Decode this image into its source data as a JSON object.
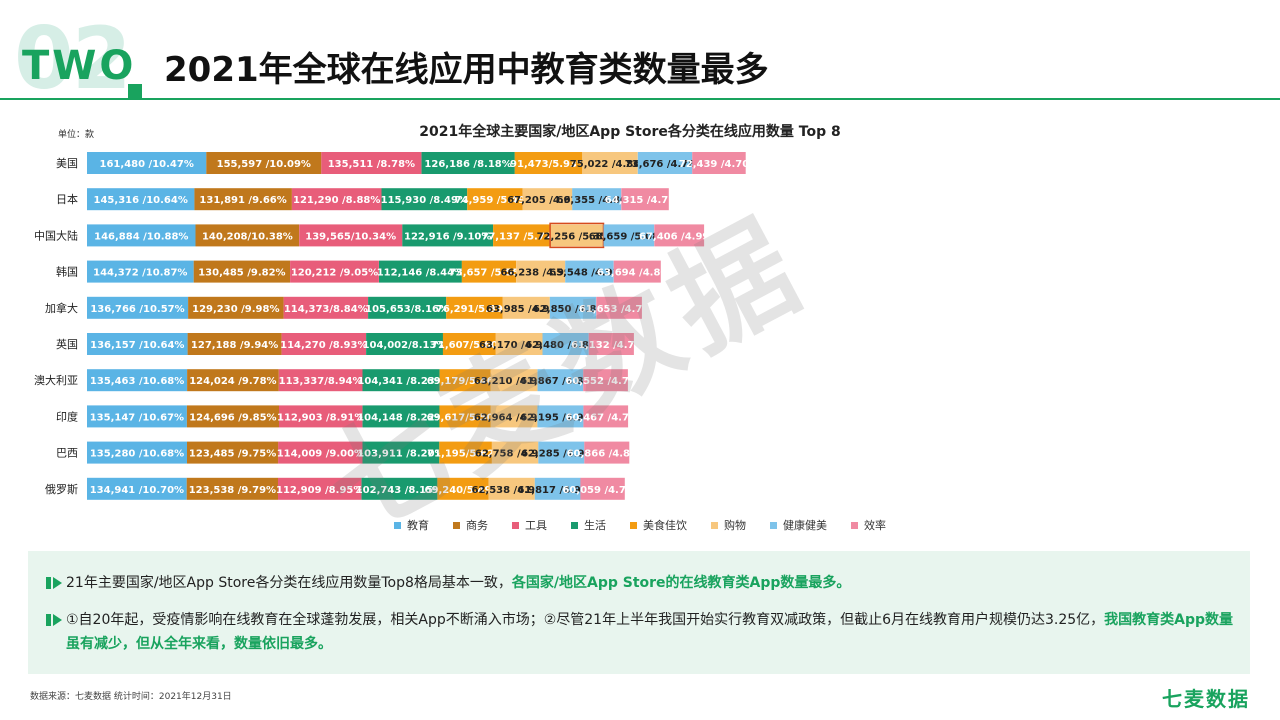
{
  "header": {
    "section_number": "02",
    "section_word": "TWO",
    "title": "2021年全球在线应用中教育类数量最多"
  },
  "unit_label": "单位：款",
  "colors": {
    "教育": "#5ab4e5",
    "商务": "#c0781c",
    "工具": "#e85d7a",
    "生活": "#199a6e",
    "美食佳饮": "#f39c12",
    "购物": "#f7c77e",
    "健康健美": "#7ec3ea",
    "效率": "#f08aa2",
    "accent": "#19a35e"
  },
  "chart_data": {
    "type": "bar",
    "orientation": "horizontal",
    "stacked": true,
    "title": "2021年全球主要国家/地区App Store各分类在线应用数量 Top 8",
    "categories": [
      "美国",
      "日本",
      "中国大陆",
      "韩国",
      "加拿大",
      "英国",
      "澳大利亚",
      "印度",
      "巴西",
      "俄罗斯"
    ],
    "series": [
      {
        "name": "教育",
        "values": [
          161480,
          145316,
          146884,
          144372,
          136766,
          136157,
          135463,
          135147,
          135280,
          134941
        ],
        "labels": [
          "161,480 /10.47%",
          "145,316 /10.64%",
          "146,884 /10.88%",
          "144,372 /10.87%",
          "136,766 /10.57%",
          "136,157 /10.64%",
          "135,463 /10.68%",
          "135,147 /10.67%",
          "135,280 /10.68%",
          "134,941 /10.70%"
        ]
      },
      {
        "name": "商务",
        "values": [
          155597,
          131891,
          140208,
          130485,
          129230,
          127188,
          124024,
          124696,
          123485,
          123538
        ],
        "labels": [
          "155,597 /10.09%",
          "131,891 /9.66%",
          "140,208/10.38%",
          "130,485 /9.82%",
          "129,230 /9.98%",
          "127,188 /9.94%",
          "124,024 /9.78%",
          "124,696 /9.85%",
          "123,485 /9.75%",
          "123,538 /9.79%"
        ]
      },
      {
        "name": "工具",
        "values": [
          135511,
          121290,
          139565,
          120212,
          114373,
          114270,
          113337,
          112903,
          114009,
          112909
        ],
        "labels": [
          "135,511 /8.78%",
          "121,290 /8.88%",
          "139,565/10.34%",
          "120,212 /9.05%",
          "114,373/8.84%",
          "114,270 /8.93%",
          "113,337/8.94%",
          "112,903 /8.91%",
          "114,009 /9.00%",
          "112,909 /8.95%"
        ]
      },
      {
        "name": "生活",
        "values": [
          126186,
          115930,
          122916,
          112146,
          105653,
          104002,
          104341,
          104148,
          103911,
          102743
        ],
        "labels": [
          "126,186 /8.18%",
          "115,930 /8.49%",
          "122,916 /9.10%",
          "112,146 /8.44%",
          "105,653/8.16%",
          "104,002/8.13%",
          "104,341 /8.23%",
          "104,148 /8.22%",
          "103,911 /8.20%",
          "102,743 /8.15%"
        ]
      },
      {
        "name": "美食佳饮",
        "values": [
          91473,
          74959,
          77137,
          73657,
          76291,
          71607,
          69179,
          69617,
          71195,
          69240
        ],
        "labels": [
          "91,473/5.93%",
          "74,959 /5.49%",
          "77,137 /5.71%",
          "73,657 /5.55%",
          "76,291/5.89%",
          "71,607/5.60%",
          "69,179/5.46%",
          "69,617/5.50%",
          "71,195/5.62%",
          "69,240/5.49%"
        ]
      },
      {
        "name": "购物",
        "values": [
          75022,
          67205,
          72256,
          66238,
          63985,
          63170,
          63210,
          62964,
          62758,
          62538
        ],
        "labels": [
          "75,022 /4.86%",
          "67,205 /4.92%",
          "72,256 /5.35%",
          "66,238 /4.99%",
          "63,985 /4.94%",
          "63,170 /4.94%",
          "63,210 /4.99%",
          "62,964 /4.97%",
          "62,758 /4.96%",
          "62,538 /4.96%"
        ]
      },
      {
        "name": "健康健美",
        "values": [
          73676,
          66355,
          68659,
          65548,
          62850,
          62480,
          61867,
          62195,
          62285,
          61817
        ],
        "labels": [
          "73,676 /4.78%",
          "66,355 /4.86%",
          "68,659 /5.08%",
          "65,548 /4.93%",
          "62,850 /4.86%",
          "62,480 /4.88%",
          "61,867 /4.88%",
          "62,195 /4.91%",
          "62,285 /4.92%",
          "61,817 /4.90%"
        ]
      },
      {
        "name": "效率",
        "values": [
          72439,
          64315,
          67406,
          63694,
          61653,
          61132,
          60552,
          60467,
          60866,
          60059
        ],
        "labels": [
          "72,439 /4.70%",
          "64,315 /4.71%",
          "67,406 /4.99%",
          "63,694 /4.80%",
          "61,653 /4.76%",
          "61,132 /4.78%",
          "60,552 /4.78%",
          "60,467 /4.77%",
          "60,866 /4.81%",
          "60,059 /4.76%"
        ]
      }
    ],
    "highlight": {
      "category": "中国大陆",
      "series": "购物"
    },
    "legend_position": "bottom",
    "grid": false
  },
  "notes": [
    {
      "text": "21年主要国家/地区App Store各分类在线应用数量Top8格局基本一致，",
      "highlight": "各国家/地区App Store的在线教育类App数量最多。"
    },
    {
      "text": "①自20年起，受疫情影响在线教育在全球蓬勃发展，相关App不断涌入市场；②尽管21年上半年我国开始实行教育双减政策，但截止6月在线教育用户规模仍达3.25亿，",
      "highlight": "我国教育类App数量虽有减少，但从全年来看，数量依旧最多。"
    }
  ],
  "footer": {
    "source": "数据来源：七麦数据  统计时间：2021年12月31日",
    "brand": "七麦数据",
    "watermark": "七麦数据"
  }
}
